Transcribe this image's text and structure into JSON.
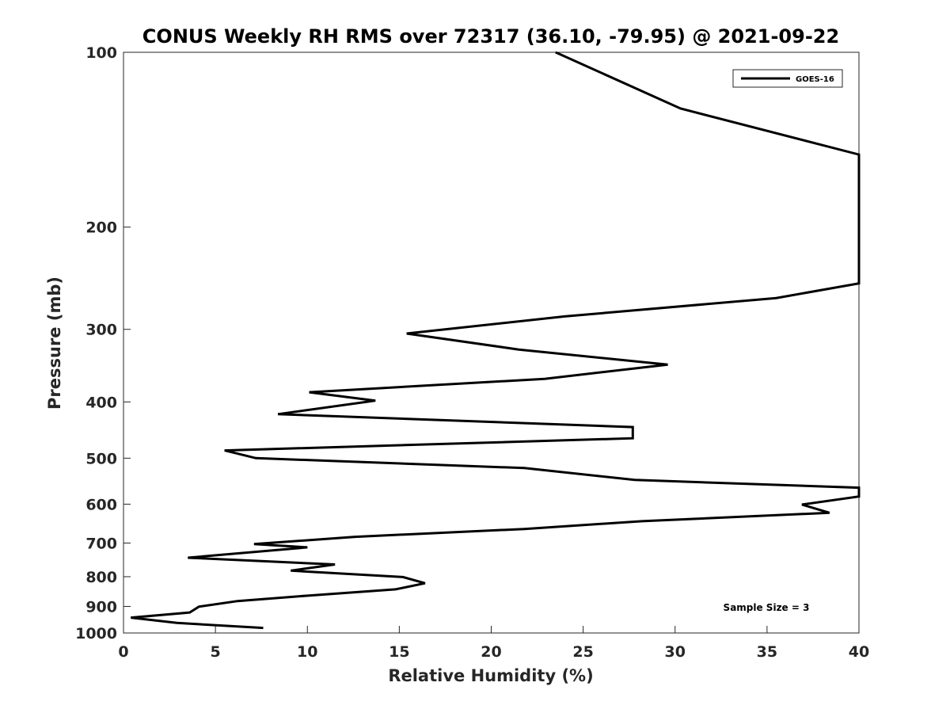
{
  "chart_data": {
    "type": "line",
    "title": "CONUS Weekly RH RMS over 72317 (36.10, -79.95) @ 2021-09-22",
    "xlabel": "Relative Humidity (%)",
    "ylabel": "Pressure (mb)",
    "xlim": [
      0,
      40
    ],
    "ylim": [
      100,
      1000
    ],
    "y_scale": "log",
    "y_reversed": true,
    "x_ticks": [
      0,
      5,
      10,
      15,
      20,
      25,
      30,
      35,
      40
    ],
    "y_ticks": [
      100,
      200,
      300,
      400,
      500,
      600,
      700,
      800,
      900,
      1000
    ],
    "grid": false,
    "legend_position": "top-right",
    "annotation": "Sample Size = 3",
    "series": [
      {
        "name": "GOES-16",
        "color": "#000000",
        "points": [
          [
            23.5,
            100
          ],
          [
            30.3,
            125
          ],
          [
            40.0,
            150
          ],
          [
            40.0,
            250
          ],
          [
            35.5,
            265
          ],
          [
            24.0,
            285
          ],
          [
            15.4,
            305
          ],
          [
            21.5,
            325
          ],
          [
            29.6,
            345
          ],
          [
            22.9,
            365
          ],
          [
            10.1,
            385
          ],
          [
            13.7,
            398
          ],
          [
            8.4,
            420
          ],
          [
            27.7,
            442
          ],
          [
            27.7,
            462
          ],
          [
            5.5,
            485
          ],
          [
            7.2,
            500
          ],
          [
            21.8,
            520
          ],
          [
            27.8,
            545
          ],
          [
            40.0,
            562
          ],
          [
            40.0,
            582
          ],
          [
            36.9,
            601
          ],
          [
            38.4,
            621
          ],
          [
            28.2,
            642
          ],
          [
            21.8,
            662
          ],
          [
            12.6,
            683
          ],
          [
            7.1,
            703
          ],
          [
            10.0,
            712
          ],
          [
            3.5,
            742
          ],
          [
            11.5,
            762
          ],
          [
            9.1,
            781
          ],
          [
            15.2,
            801
          ],
          [
            16.4,
            821
          ],
          [
            14.8,
            841
          ],
          [
            10.1,
            862
          ],
          [
            6.2,
            881
          ],
          [
            4.1,
            901
          ],
          [
            3.6,
            922
          ],
          [
            0.4,
            941
          ],
          [
            2.9,
            961
          ],
          [
            7.6,
            980
          ]
        ]
      }
    ]
  }
}
